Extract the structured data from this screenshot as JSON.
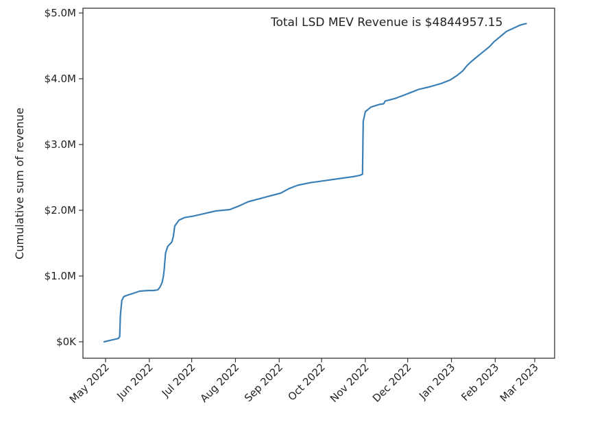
{
  "chart_data": {
    "type": "line",
    "title": "",
    "xlabel": "",
    "ylabel": "Cumulative sum of revenue",
    "annotation": "Total LSD MEV Revenue is $4844957.15",
    "line_color": "#3a7fb5",
    "grid": false,
    "legend": "none",
    "x_start_date": "2022-05-01",
    "x_unit": "days since 2022-05-01",
    "xlim": [
      -15,
      318
    ],
    "ylim": [
      -0.25,
      5.0
    ],
    "y_unit": "million USD",
    "x_ticks": [
      {
        "value": 0,
        "label": "May 2022"
      },
      {
        "value": 31,
        "label": "Jun 2022"
      },
      {
        "value": 61,
        "label": "Jul 2022"
      },
      {
        "value": 92,
        "label": "Aug 2022"
      },
      {
        "value": 123,
        "label": "Sep 2022"
      },
      {
        "value": 153,
        "label": "Oct 2022"
      },
      {
        "value": 184,
        "label": "Nov 2022"
      },
      {
        "value": 214,
        "label": "Dec 2022"
      },
      {
        "value": 245,
        "label": "Jan 2023"
      },
      {
        "value": 276,
        "label": "Feb 2023"
      },
      {
        "value": 304,
        "label": "Mar 2023"
      }
    ],
    "y_ticks": [
      {
        "value": 0,
        "label": "$0K"
      },
      {
        "value": 1,
        "label": "$1.0M"
      },
      {
        "value": 2,
        "label": "$2.0M"
      },
      {
        "value": 3,
        "label": "$3.0M"
      },
      {
        "value": 4,
        "label": "$4.0M"
      },
      {
        "value": 5,
        "label": "$5.0M"
      }
    ],
    "series": [
      {
        "name": "Cumulative sum of revenue",
        "x": [
          -1,
          5,
          9,
          10,
          10.5,
          11.5,
          13,
          17,
          20,
          24,
          30,
          34,
          37,
          38.5,
          40,
          41,
          41.5,
          42.5,
          44,
          47,
          48,
          49,
          52,
          56,
          62,
          70,
          78,
          88,
          95,
          101,
          108,
          115,
          124,
          130,
          136,
          145,
          155,
          165,
          175,
          180,
          182,
          182.5,
          184,
          188,
          194,
          197,
          198,
          205,
          210,
          216,
          222,
          230,
          238,
          244,
          249,
          253,
          256,
          259,
          264,
          268,
          272,
          275,
          280,
          284,
          289,
          293,
          296,
          298
        ],
        "y": [
          0.0,
          0.03,
          0.05,
          0.08,
          0.4,
          0.63,
          0.69,
          0.72,
          0.74,
          0.77,
          0.78,
          0.78,
          0.79,
          0.83,
          0.9,
          1.0,
          1.1,
          1.35,
          1.45,
          1.52,
          1.6,
          1.76,
          1.85,
          1.89,
          1.91,
          1.95,
          1.99,
          2.01,
          2.07,
          2.13,
          2.17,
          2.21,
          2.26,
          2.33,
          2.38,
          2.42,
          2.45,
          2.48,
          2.51,
          2.53,
          2.55,
          3.35,
          3.5,
          3.57,
          3.61,
          3.62,
          3.66,
          3.7,
          3.74,
          3.79,
          3.84,
          3.88,
          3.93,
          3.98,
          4.05,
          4.12,
          4.2,
          4.26,
          4.35,
          4.42,
          4.49,
          4.56,
          4.65,
          4.72,
          4.77,
          4.81,
          4.83,
          4.84
        ]
      }
    ]
  }
}
